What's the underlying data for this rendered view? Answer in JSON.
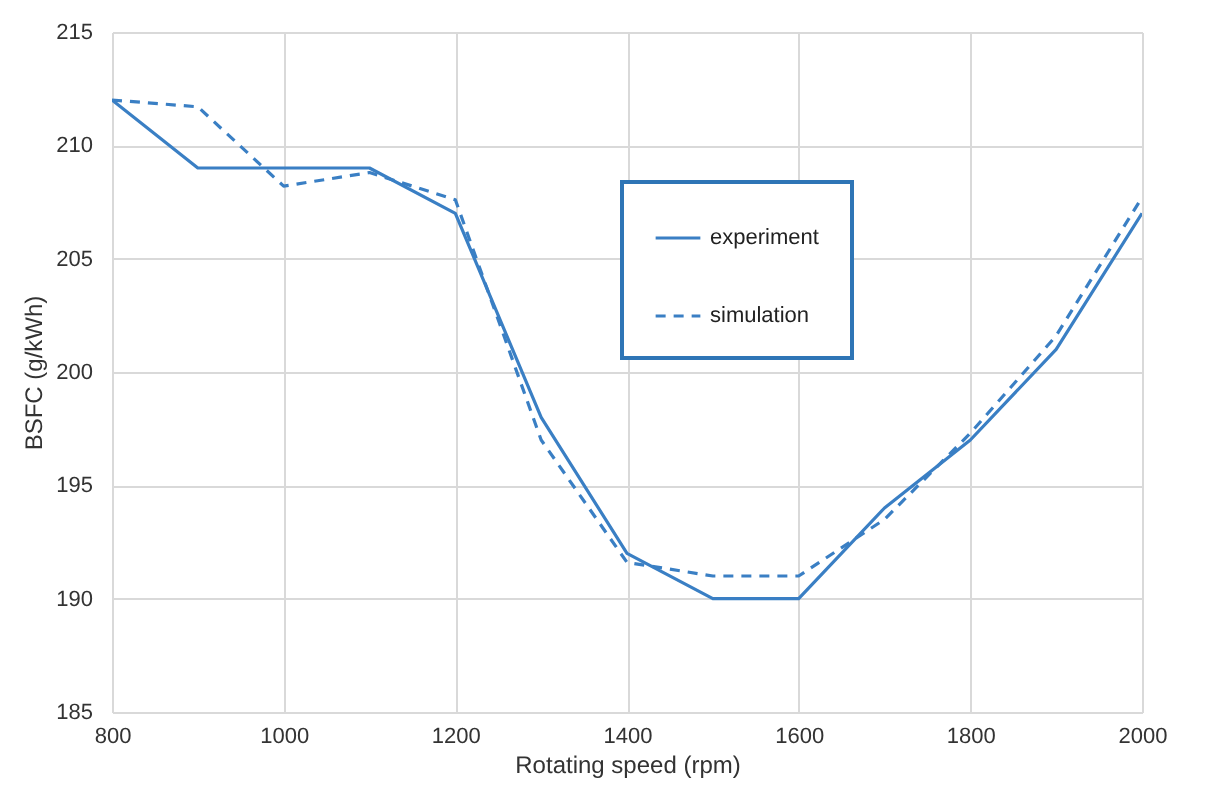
{
  "chart_data": {
    "type": "line",
    "xlabel": "Rotating speed (rpm)",
    "ylabel": "BSFC (g/kWh)",
    "x": [
      800,
      900,
      1000,
      1100,
      1200,
      1300,
      1400,
      1500,
      1600,
      1700,
      1800,
      1900,
      2000
    ],
    "series": [
      {
        "name": "experiment",
        "color": "#3a7fc4",
        "line_style": "solid",
        "values": [
          212,
          209,
          209,
          209,
          207,
          198,
          192,
          190,
          190,
          194,
          197,
          201,
          207
        ]
      },
      {
        "name": "simulation",
        "color": "#3a7fc4",
        "line_style": "dashed",
        "values": [
          212,
          211.7,
          208.2,
          208.8,
          207.6,
          197,
          191.6,
          191,
          191,
          193.5,
          197.3,
          201.6,
          207.7
        ]
      }
    ],
    "xlim": [
      800,
      2000
    ],
    "xticks": [
      800,
      1000,
      1200,
      1400,
      1600,
      1800,
      2000
    ],
    "ylim": [
      185,
      215
    ],
    "yticks": [
      185,
      190,
      195,
      200,
      205,
      210,
      215
    ],
    "grid": true,
    "legend": "top right",
    "marker": "none"
  }
}
